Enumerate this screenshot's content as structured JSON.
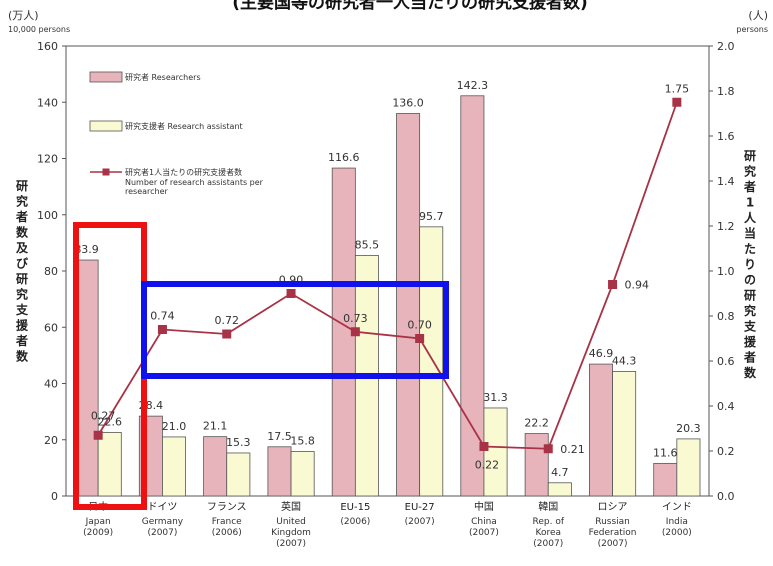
{
  "page": {
    "title_fragment": "(主要国等の研究者一人当たりの研究支援者数)"
  },
  "chart_data": {
    "type": "bar",
    "left_axis": {
      "unit_jp": "(万人)",
      "unit_en": "10,000 persons",
      "range": [
        0,
        160
      ],
      "ticks": [
        "0",
        "20",
        "40",
        "60",
        "80",
        "100",
        "120",
        "140",
        "160"
      ],
      "label_chars": [
        "研",
        "究",
        "者",
        "数",
        "及",
        "び",
        "研",
        "究",
        "支",
        "援",
        "者",
        "数"
      ]
    },
    "right_axis": {
      "unit_jp": "(人)",
      "unit_en": "persons",
      "range": [
        0,
        2.0
      ],
      "ticks": [
        "0.0",
        "0.2",
        "0.4",
        "0.6",
        "0.8",
        "1.0",
        "1.2",
        "1.4",
        "1.6",
        "1.8",
        "2.0"
      ],
      "label_chars": [
        "研",
        "究",
        "者",
        "1",
        "人",
        "当",
        "た",
        "り",
        "の",
        "研",
        "究",
        "支",
        "援",
        "者",
        "数"
      ]
    },
    "categories": [
      {
        "jp": "日本",
        "en": "Japan",
        "year": "(2009)"
      },
      {
        "jp": "ドイツ",
        "en": "Germany",
        "year": "(2007)"
      },
      {
        "jp": "フランス",
        "en": "France",
        "year": "(2006)"
      },
      {
        "jp": "英国",
        "en": "United Kingdom",
        "year": "(2007)"
      },
      {
        "jp": "EU-15",
        "en": "",
        "year": "(2006)"
      },
      {
        "jp": "EU-27",
        "en": "",
        "year": "(2007)"
      },
      {
        "jp": "中国",
        "en": "China",
        "year": "(2007)"
      },
      {
        "jp": "韓国",
        "en": "Rep. of Korea",
        "year": "(2007)"
      },
      {
        "jp": "ロシア",
        "en": "Russian Federation",
        "year": "(2007)"
      },
      {
        "jp": "インド",
        "en": "India",
        "year": "(2000)"
      }
    ],
    "series": [
      {
        "name": "研究者 Researchers",
        "type": "bar",
        "axis": "left",
        "color": "#e8b4bc",
        "values": [
          83.9,
          28.4,
          21.1,
          17.5,
          116.6,
          136.0,
          142.3,
          22.2,
          46.9,
          11.6
        ],
        "labels": [
          "83.9",
          "28.4",
          "21.1",
          "17.5",
          "116.6",
          "136.0",
          "142.3",
          "22.2",
          "46.9",
          "11.6"
        ]
      },
      {
        "name": "研究支援者 Research assistant",
        "type": "bar",
        "axis": "left",
        "color": "#fafad2",
        "values": [
          22.6,
          21.0,
          15.3,
          15.8,
          85.5,
          95.7,
          31.3,
          4.7,
          44.3,
          20.3
        ],
        "labels": [
          "22.6",
          "21.0",
          "15.3",
          "15.8",
          "85.5",
          "95.7",
          "31.3",
          "4.7",
          "44.3",
          "20.3"
        ]
      },
      {
        "name": "研究者1人当たりの研究支援者数 Number of research assistants per researcher",
        "type": "line",
        "axis": "right",
        "color": "#a83246",
        "values": [
          0.27,
          0.74,
          0.72,
          0.9,
          0.73,
          0.7,
          0.22,
          0.21,
          0.94,
          1.75
        ],
        "labels": [
          "0.27",
          "0.74",
          "0.72",
          "0.90",
          "0.73",
          "0.70",
          "0.22",
          "0.21",
          "0.94",
          "1.75"
        ]
      }
    ],
    "legend": {
      "position": "top-left",
      "items": [
        {
          "text": "研究者 Researchers"
        },
        {
          "text": "研究支援者 Research assistant"
        },
        {
          "text_lines": [
            "研究者1人当たりの研究支援者数",
            "Number of research assistants per",
            "researcher"
          ]
        }
      ]
    },
    "highlights": [
      {
        "shape": "rectangle",
        "color": "#ee1111",
        "around": "日本"
      },
      {
        "shape": "rectangle",
        "color": "#1111ee",
        "around": "ドイツ to EU-27 line values"
      }
    ]
  }
}
